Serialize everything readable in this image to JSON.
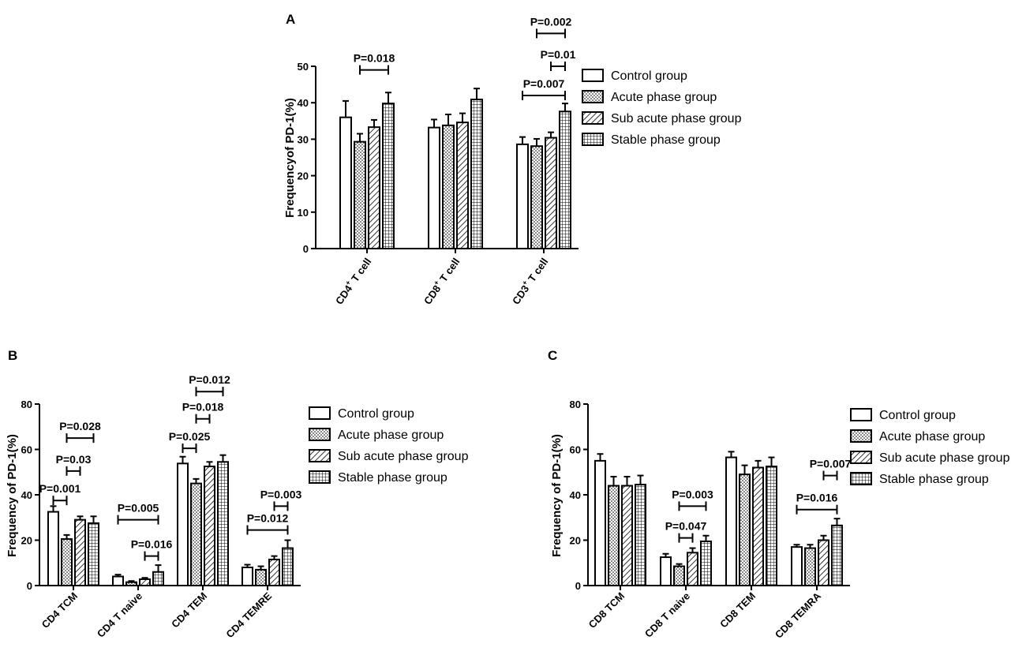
{
  "colors": {
    "stroke": "#000000",
    "fill": "#ffffff"
  },
  "series_patterns": [
    "none",
    "dots",
    "diag",
    "grid"
  ],
  "chart_data": [
    {
      "panel": "A",
      "type": "bar",
      "ylabel": "Frequencyof PD-1(%)",
      "ylim": [
        0,
        50
      ],
      "yticks": [
        0,
        10,
        20,
        30,
        40,
        50
      ],
      "categories": [
        {
          "main": "CD4",
          "sup": "+",
          "rest": " T cell"
        },
        {
          "main": "CD8",
          "sup": "+",
          "rest": " T cell"
        },
        {
          "main": "CD3",
          "sup": "+",
          "rest": " T cell"
        }
      ],
      "series": [
        {
          "name": "Control group",
          "values": [
            36,
            33.2,
            28.6
          ],
          "errors": [
            4.5,
            2.2,
            2.0
          ]
        },
        {
          "name": "Acute phase group",
          "values": [
            29.3,
            33.8,
            28.1
          ],
          "errors": [
            2.2,
            3.0,
            2.0
          ]
        },
        {
          "name": "Sub acute phase group",
          "values": [
            33.3,
            34.6,
            30.4
          ],
          "errors": [
            2.0,
            2.5,
            1.5
          ]
        },
        {
          "name": "Stable phase group",
          "values": [
            39.8,
            40.9,
            37.6
          ],
          "errors": [
            3.0,
            3.0,
            2.2
          ]
        }
      ],
      "annotations": [
        {
          "label": "P=0.018",
          "cat": 0,
          "from": 1,
          "to": 3,
          "level": 49
        },
        {
          "label": "P=0.007",
          "cat": 2,
          "from": 0,
          "to": 3,
          "level": 42
        },
        {
          "label": "P=0.01",
          "cat": 2,
          "from": 2,
          "to": 3,
          "level": 50
        },
        {
          "label": "P=0.002",
          "cat": 2,
          "from": 1,
          "to": 3,
          "level": 59
        }
      ]
    },
    {
      "panel": "B",
      "type": "bar",
      "ylabel": "Frequency of PD-1(%)",
      "ylim": [
        0,
        80
      ],
      "yticks": [
        0,
        20,
        40,
        60,
        80
      ],
      "categories": [
        {
          "main": "CD4 TCM"
        },
        {
          "main": "CD4 T naive"
        },
        {
          "main": "CD4 TEM"
        },
        {
          "main": "CD4 TEMRE"
        }
      ],
      "series": [
        {
          "name": "Control group",
          "values": [
            32.5,
            4,
            53.8,
            8
          ],
          "errors": [
            2.5,
            0.8,
            3.0,
            1.2
          ]
        },
        {
          "name": "Acute phase group",
          "values": [
            20.5,
            1.5,
            45,
            7
          ],
          "errors": [
            1.8,
            0.5,
            2.0,
            1.5
          ]
        },
        {
          "name": "Sub acute phase group",
          "values": [
            29,
            2.8,
            52.5,
            11.5
          ],
          "errors": [
            1.5,
            0.6,
            2.0,
            1.5
          ]
        },
        {
          "name": "Stable phase group",
          "values": [
            27.5,
            6,
            54.5,
            16.5
          ],
          "errors": [
            3.0,
            3.0,
            3.0,
            3.5
          ]
        }
      ],
      "annotations": [
        {
          "label": "P=0.001",
          "cat": 0,
          "from": 0,
          "to": 1,
          "level": 37.5
        },
        {
          "label": "P=0.03",
          "cat": 0,
          "from": 1,
          "to": 2,
          "level": 50.5
        },
        {
          "label": "P=0.028",
          "cat": 0,
          "from": 1,
          "to": 3,
          "level": 65
        },
        {
          "label": "P=0.016",
          "cat": 1,
          "from": 2,
          "to": 3,
          "level": 13
        },
        {
          "label": "P=0.005",
          "cat": 1,
          "from": 0,
          "to": 3,
          "level": 29
        },
        {
          "label": "P=0.025",
          "cat": 2,
          "from": 0,
          "to": 1,
          "level": 60.5
        },
        {
          "label": "P=0.018",
          "cat": 2,
          "from": 1,
          "to": 2,
          "level": 73.5
        },
        {
          "label": "P=0.012",
          "cat": 2,
          "from": 1,
          "to": 3,
          "level": 85.5
        },
        {
          "label": "P=0.012",
          "cat": 3,
          "from": 0,
          "to": 3,
          "level": 24.5
        },
        {
          "label": "P=0.003",
          "cat": 3,
          "from": 2,
          "to": 3,
          "level": 35
        }
      ]
    },
    {
      "panel": "C",
      "type": "bar",
      "ylabel": "Frequency of PD-1(%)",
      "ylim": [
        0,
        80
      ],
      "yticks": [
        0,
        20,
        40,
        60,
        80
      ],
      "categories": [
        {
          "main": "CD8 TCM"
        },
        {
          "main": "CD8 T naive"
        },
        {
          "main": "CD8 TEM"
        },
        {
          "main": "CD8 TEMRA"
        }
      ],
      "series": [
        {
          "name": "Control group",
          "values": [
            55,
            12.5,
            56.5,
            17
          ],
          "errors": [
            3.0,
            1.5,
            2.5,
            1.0
          ]
        },
        {
          "name": "Acute phase group",
          "values": [
            44,
            8.5,
            49,
            16.5
          ],
          "errors": [
            4.0,
            1.0,
            4.0,
            1.5
          ]
        },
        {
          "name": "Sub acute phase group",
          "values": [
            44,
            14.5,
            52,
            20
          ],
          "errors": [
            4.0,
            2.0,
            3.0,
            2.0
          ]
        },
        {
          "name": "Stable phase group",
          "values": [
            44.5,
            19.5,
            52.5,
            26.5
          ],
          "errors": [
            4.0,
            2.5,
            4.0,
            3.0
          ]
        }
      ],
      "annotations": [
        {
          "label": "P=0.047",
          "cat": 1,
          "from": 1,
          "to": 2,
          "level": 21
        },
        {
          "label": "P=0.003",
          "cat": 1,
          "from": 1,
          "to": 3,
          "level": 35
        },
        {
          "label": "P=0.016",
          "cat": 3,
          "from": 0,
          "to": 3,
          "level": 33.5
        },
        {
          "label": "P=0.007",
          "cat": 3,
          "from": 2,
          "to": 3,
          "level": 48.5
        }
      ]
    }
  ]
}
